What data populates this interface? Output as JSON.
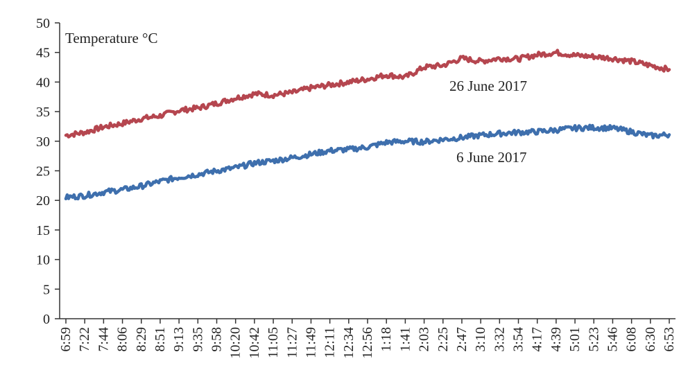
{
  "chart_data": {
    "type": "line",
    "ylabel": "Temperature °C",
    "ylim": [
      0,
      50
    ],
    "yticks": [
      0,
      5,
      10,
      15,
      20,
      25,
      30,
      35,
      40,
      45,
      50
    ],
    "x": [
      "6:59",
      "7:22",
      "7:44",
      "8:06",
      "8:29",
      "8:51",
      "9:13",
      "9:35",
      "9:58",
      "10:20",
      "10:42",
      "11:05",
      "11:27",
      "11:49",
      "12:11",
      "12:34",
      "12:56",
      "1:18",
      "1:41",
      "2:03",
      "2:25",
      "2:47",
      "3:10",
      "3:32",
      "3:54",
      "4:17",
      "4:39",
      "5:01",
      "5:23",
      "5:46",
      "6:08",
      "6:30",
      "6:53"
    ],
    "grid": false,
    "series": [
      {
        "name": "26 June 2017",
        "color": "#b5464f",
        "values": [
          31.0,
          31.5,
          32.4,
          33.0,
          33.8,
          34.3,
          35.2,
          35.6,
          36.4,
          37.3,
          38.0,
          37.8,
          38.2,
          39.0,
          39.5,
          40.0,
          40.5,
          41.2,
          40.8,
          42.5,
          42.8,
          44.0,
          43.5,
          44.0,
          43.9,
          44.6,
          45.0,
          44.5,
          44.3,
          44.0,
          43.5,
          42.8,
          42.1
        ]
      },
      {
        "name": "6 June 2017",
        "color": "#3e6fad",
        "values": [
          20.5,
          20.8,
          21.4,
          21.8,
          22.4,
          23.2,
          23.9,
          24.4,
          25.0,
          25.5,
          26.3,
          26.7,
          27.2,
          27.8,
          28.4,
          28.6,
          29.0,
          29.8,
          30.0,
          29.9,
          30.3,
          30.6,
          31.0,
          31.3,
          31.5,
          31.6,
          31.9,
          32.2,
          32.3,
          32.2,
          31.6,
          30.9,
          31.1
        ]
      }
    ]
  }
}
